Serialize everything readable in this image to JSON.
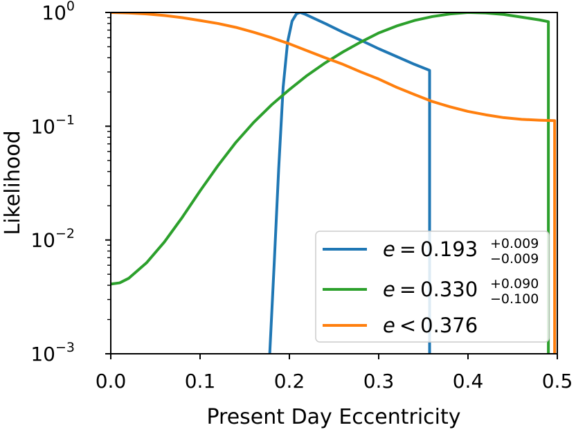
{
  "chart_data": {
    "type": "line",
    "xlabel": "Present Day Eccentricity",
    "ylabel": "Likelihood",
    "xlim": [
      0.0,
      0.5
    ],
    "ylim": [
      0.001,
      1.0
    ],
    "yscale": "log",
    "grid": false,
    "legend_position": "bottom-right",
    "xticks": [
      {
        "value": 0.0,
        "label": "0.0"
      },
      {
        "value": 0.1,
        "label": "0.1"
      },
      {
        "value": 0.2,
        "label": "0.2"
      },
      {
        "value": 0.3,
        "label": "0.3"
      },
      {
        "value": 0.4,
        "label": "0.4"
      },
      {
        "value": 0.5,
        "label": "0.5"
      }
    ],
    "yticks": [
      {
        "value": 1.0,
        "base": "10",
        "exp": "0"
      },
      {
        "value": 0.1,
        "base": "10",
        "exp": "−1"
      },
      {
        "value": 0.01,
        "base": "10",
        "exp": "−2"
      },
      {
        "value": 0.001,
        "base": "10",
        "exp": "−3"
      }
    ],
    "series": [
      {
        "name": "e = 0.193 +0.009 −0.009",
        "legend": {
          "prefix": "e",
          "relation": "=",
          "value": "0.193",
          "sup": "+0.009",
          "sub": "−0.009"
        },
        "color": "#1f77b4",
        "x": [
          0.178,
          0.183,
          0.188,
          0.193,
          0.198,
          0.203,
          0.208,
          0.212,
          0.217,
          0.222,
          0.24,
          0.26,
          0.28,
          0.3,
          0.32,
          0.34,
          0.357,
          0.357,
          0.357
        ],
        "y": [
          0.001,
          0.0062,
          0.042,
          0.22,
          0.55,
          0.84,
          0.975,
          1.0,
          0.97,
          0.93,
          0.8,
          0.67,
          0.57,
          0.48,
          0.41,
          0.35,
          0.31,
          0.01,
          0.001
        ]
      },
      {
        "name": "e = 0.330 +0.090 −0.100",
        "legend": {
          "prefix": "e",
          "relation": "=",
          "value": "0.330",
          "sup": "+0.090",
          "sub": "−0.100"
        },
        "color": "#2ca02c",
        "x": [
          0.0,
          0.01,
          0.02,
          0.04,
          0.06,
          0.08,
          0.1,
          0.12,
          0.14,
          0.16,
          0.18,
          0.2,
          0.22,
          0.24,
          0.26,
          0.28,
          0.3,
          0.32,
          0.34,
          0.36,
          0.38,
          0.4,
          0.42,
          0.44,
          0.46,
          0.48,
          0.49,
          0.49,
          0.49
        ],
        "y": [
          0.0041,
          0.0042,
          0.0046,
          0.0063,
          0.0096,
          0.0158,
          0.027,
          0.045,
          0.072,
          0.108,
          0.154,
          0.21,
          0.28,
          0.36,
          0.45,
          0.55,
          0.66,
          0.76,
          0.85,
          0.92,
          0.97,
          1.0,
          0.99,
          0.96,
          0.91,
          0.86,
          0.83,
          0.01,
          0.001
        ]
      },
      {
        "name": "e < 0.376",
        "legend": {
          "prefix": "e",
          "relation": "<",
          "value": "0.376",
          "sup": "",
          "sub": ""
        },
        "color": "#ff7f0e",
        "x": [
          0.0,
          0.02,
          0.04,
          0.06,
          0.08,
          0.1,
          0.12,
          0.14,
          0.16,
          0.18,
          0.2,
          0.22,
          0.24,
          0.26,
          0.28,
          0.3,
          0.32,
          0.34,
          0.36,
          0.38,
          0.4,
          0.42,
          0.44,
          0.46,
          0.48,
          0.497,
          0.497,
          0.497
        ],
        "y": [
          1.0,
          0.99,
          0.97,
          0.94,
          0.9,
          0.85,
          0.8,
          0.74,
          0.67,
          0.6,
          0.53,
          0.46,
          0.4,
          0.35,
          0.3,
          0.26,
          0.22,
          0.19,
          0.165,
          0.148,
          0.135,
          0.126,
          0.119,
          0.115,
          0.113,
          0.112,
          0.01,
          0.001
        ]
      }
    ]
  }
}
